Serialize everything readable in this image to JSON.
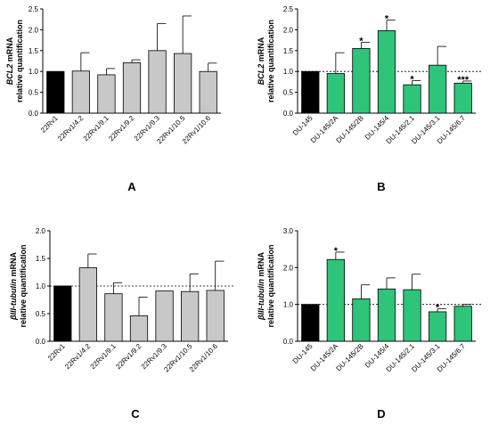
{
  "colors": {
    "control": "#000000",
    "gray": "#c8c8c8",
    "green": "#2ec47a",
    "axis": "#000000"
  },
  "chart_data": [
    {
      "panel": "A",
      "type": "bar",
      "ylabel_gene": "BCL2",
      "ylabel_rest": " mRNA",
      "ylabel2": "relative quantification",
      "ylim": [
        0,
        2.5
      ],
      "yticks": [
        "0.0",
        "0.5",
        "1.0",
        "1.5",
        "2.0",
        "2.5"
      ],
      "reference_line": false,
      "categories": [
        "22Rv1",
        "22Rv1/4.2",
        "22Rv1/9.1",
        "22Rv1/9.2",
        "22Rv1/9.3",
        "22Rv1/10.5",
        "22Rv1/10.6"
      ],
      "values": [
        1.0,
        1.01,
        0.92,
        1.21,
        1.5,
        1.43,
        1.0
      ],
      "errors": [
        0.0,
        0.44,
        0.15,
        0.07,
        0.65,
        0.9,
        0.2
      ],
      "significance": [
        "",
        "",
        "",
        "",
        "",
        "",
        ""
      ],
      "bar_colors": [
        "control",
        "gray",
        "gray",
        "gray",
        "gray",
        "gray",
        "gray"
      ]
    },
    {
      "panel": "B",
      "type": "bar",
      "ylabel_gene": "BCL2",
      "ylabel_rest": " mRNA",
      "ylabel2": "relative quantification",
      "ylim": [
        0,
        2.5
      ],
      "yticks": [
        "0.0",
        "0.5",
        "1.0",
        "1.5",
        "2.0",
        "2.5"
      ],
      "reference_line": true,
      "categories": [
        "DU-145",
        "DU-145/2A",
        "DU-145/2B",
        "DU-145/4",
        "DU-145/2.1",
        "DU-145/3.1",
        "DU-145/6.7"
      ],
      "values": [
        1.0,
        0.95,
        1.55,
        1.98,
        0.68,
        1.15,
        0.72
      ],
      "errors": [
        0.0,
        0.5,
        0.15,
        0.25,
        0.1,
        0.45,
        0.05
      ],
      "significance": [
        "",
        "",
        "*",
        "*",
        "*",
        "",
        "***"
      ],
      "bar_colors": [
        "control",
        "green",
        "green",
        "green",
        "green",
        "green",
        "green"
      ]
    },
    {
      "panel": "C",
      "type": "bar",
      "ylabel_gene": "βIII-tubulin",
      "ylabel_rest": " mRNA",
      "ylabel2": "relative quantification",
      "ylim": [
        0,
        2.0
      ],
      "yticks": [
        "0.0",
        "0.5",
        "1.0",
        "1.5",
        "2.0"
      ],
      "reference_line": true,
      "categories": [
        "22Rv1",
        "22Rv1/4.2",
        "22Rv1/9.1",
        "22Rv1/9.2",
        "22Rv1/9.3",
        "22Rv1/10.5",
        "22Rv1/10.6"
      ],
      "values": [
        1.0,
        1.33,
        0.86,
        0.46,
        0.91,
        0.9,
        0.92
      ],
      "errors": [
        0.0,
        0.25,
        0.2,
        0.34,
        0.0,
        0.32,
        0.53
      ],
      "significance": [
        "",
        "",
        "",
        "",
        "",
        "",
        ""
      ],
      "bar_colors": [
        "control",
        "gray",
        "gray",
        "gray",
        "gray",
        "gray",
        "gray"
      ]
    },
    {
      "panel": "D",
      "type": "bar",
      "ylabel_gene": "βIII-tubulin",
      "ylabel_rest": " mRNA",
      "ylabel2": "relative quantification",
      "ylim": [
        0,
        3.0
      ],
      "yticks": [
        "0.0",
        "1.0",
        "2.0",
        "3.0"
      ],
      "reference_line": true,
      "categories": [
        "DU-145",
        "DU-145/2A",
        "DU-145/2B",
        "DU-145/4",
        "DU-145/2.1",
        "DU-145/3.1",
        "DU-145/6.7"
      ],
      "values": [
        1.0,
        2.22,
        1.15,
        1.42,
        1.4,
        0.8,
        0.95
      ],
      "errors": [
        0.0,
        0.2,
        0.38,
        0.3,
        0.42,
        0.08,
        0.05
      ],
      "significance": [
        "",
        "*",
        "",
        "",
        "",
        "*",
        ""
      ],
      "bar_colors": [
        "control",
        "green",
        "green",
        "green",
        "green",
        "green",
        "green"
      ]
    }
  ]
}
